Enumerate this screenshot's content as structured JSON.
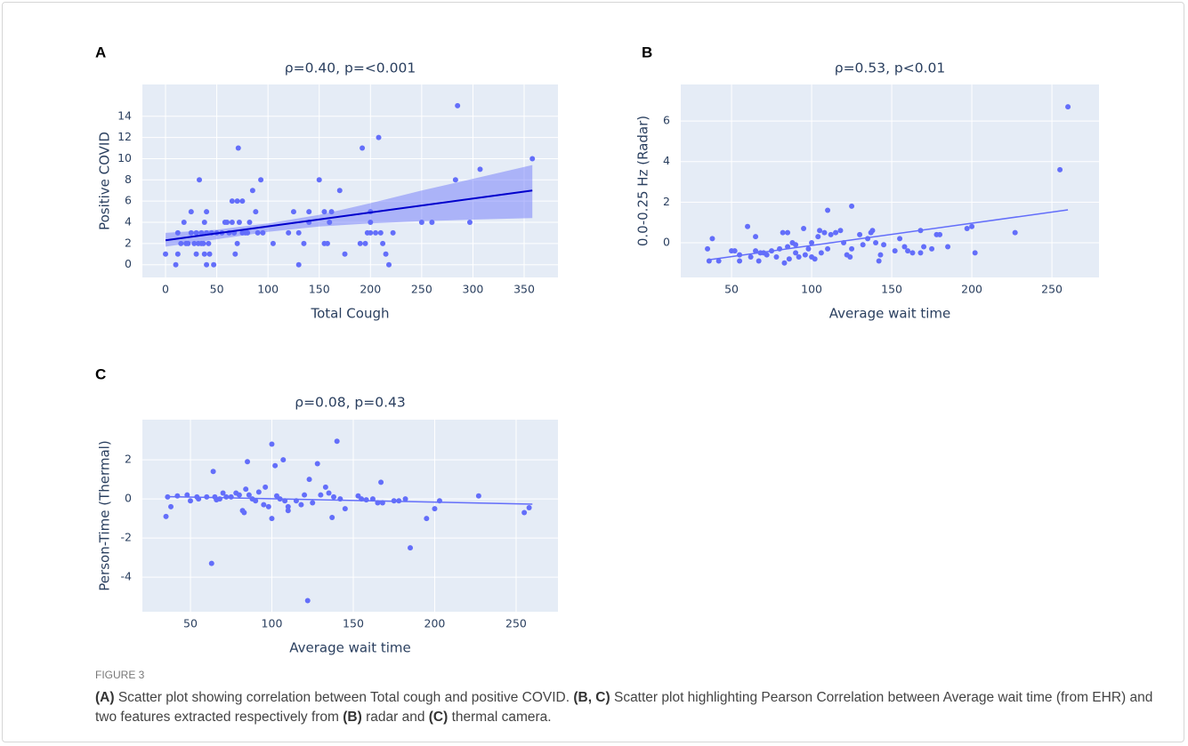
{
  "chart_data": [
    {
      "type": "scatter",
      "panel_label": "A",
      "title": "ρ=0.40, p=<0.001",
      "xlabel": "Total Cough",
      "ylabel": "Positive COVID",
      "color": "#636efa",
      "grid": true,
      "xlim": [
        -22.6,
        383
      ],
      "ylim": [
        -1.2,
        17
      ],
      "xticks": [
        0,
        50,
        100,
        150,
        200,
        250,
        300,
        350
      ],
      "yticks": [
        0,
        2,
        4,
        6,
        8,
        10,
        12,
        14
      ],
      "x": [
        0,
        10,
        12,
        12,
        15,
        18,
        20,
        22,
        25,
        25,
        28,
        30,
        30,
        32,
        33,
        35,
        35,
        37,
        38,
        38,
        40,
        40,
        40,
        42,
        43,
        45,
        47,
        50,
        55,
        58,
        60,
        62,
        65,
        65,
        67,
        68,
        70,
        70,
        71,
        72,
        75,
        75,
        78,
        80,
        82,
        85,
        88,
        90,
        93,
        95,
        105,
        120,
        125,
        130,
        130,
        135,
        140,
        140,
        150,
        155,
        155,
        158,
        160,
        162,
        170,
        175,
        190,
        192,
        195,
        197,
        200,
        200,
        200,
        205,
        208,
        210,
        212,
        215,
        218,
        222,
        250,
        260,
        283,
        285,
        297,
        307,
        358
      ],
      "values": [
        1,
        0,
        1,
        3,
        2,
        4,
        2,
        2,
        3,
        5,
        2,
        3,
        1,
        2,
        8,
        3,
        2,
        2,
        1,
        4,
        0,
        5,
        3,
        2,
        1,
        3,
        0,
        3,
        3,
        4,
        4,
        3,
        6,
        4,
        3,
        1,
        6,
        2,
        11,
        4,
        6,
        3,
        3,
        3,
        4,
        7,
        5,
        3,
        8,
        3,
        2,
        3,
        5,
        0,
        3,
        2,
        5,
        4,
        8,
        5,
        2,
        2,
        4,
        5,
        7,
        1,
        2,
        11,
        2,
        3,
        5,
        4,
        3,
        3,
        12,
        3,
        2,
        1,
        0,
        3,
        4,
        4,
        8,
        15,
        4,
        9,
        10
      ],
      "fit": {
        "color": "#0000cc",
        "x": [
          0,
          358
        ],
        "values": [
          2.3,
          7.0
        ]
      },
      "band": {
        "color": "#636efa",
        "x": [
          0,
          50,
          100,
          150,
          200,
          250,
          300,
          358
        ],
        "lower": [
          1.7,
          2.4,
          3.1,
          3.6,
          3.9,
          4.1,
          4.25,
          4.4
        ],
        "upper": [
          3.0,
          3.3,
          3.9,
          4.7,
          5.8,
          7.0,
          8.1,
          9.4
        ]
      }
    },
    {
      "type": "scatter",
      "panel_label": "B",
      "title": "ρ=0.53, p<0.01",
      "xlabel": "Average wait time",
      "ylabel": "0.0-0.25 Hz (Radar)",
      "color": "#636efa",
      "grid": true,
      "xlim": [
        18.3,
        279.4
      ],
      "ylim": [
        -1.71,
        7.8
      ],
      "xticks": [
        50,
        100,
        150,
        200,
        250
      ],
      "yticks": [
        0,
        2,
        4,
        6
      ],
      "x": [
        35,
        36,
        38,
        42,
        50,
        52,
        55,
        55,
        60,
        62,
        65,
        65,
        67,
        68,
        70,
        72,
        75,
        78,
        80,
        82,
        83,
        85,
        85,
        86,
        88,
        90,
        90,
        92,
        95,
        96,
        98,
        100,
        100,
        102,
        104,
        105,
        106,
        108,
        110,
        110,
        112,
        115,
        118,
        120,
        122,
        124,
        125,
        125,
        130,
        132,
        135,
        137,
        138,
        140,
        142,
        143,
        145,
        152,
        155,
        158,
        160,
        163,
        168,
        168,
        170,
        175,
        178,
        180,
        185,
        197,
        200,
        202,
        227,
        255,
        260
      ],
      "values": [
        -0.3,
        -0.9,
        0.2,
        -0.9,
        -0.4,
        -0.4,
        -0.9,
        -0.6,
        0.8,
        -0.7,
        -0.4,
        0.3,
        -0.9,
        -0.5,
        -0.5,
        -0.6,
        -0.4,
        -0.7,
        -0.3,
        0.5,
        -1.0,
        -0.2,
        0.5,
        -0.8,
        0.0,
        -0.5,
        -0.1,
        -0.7,
        0.7,
        -0.6,
        -0.3,
        -0.7,
        0.0,
        -0.8,
        0.3,
        0.6,
        -0.5,
        0.5,
        1.6,
        -0.3,
        0.4,
        0.5,
        0.6,
        0.0,
        -0.6,
        -0.7,
        1.8,
        -0.3,
        0.4,
        -0.1,
        0.2,
        0.5,
        0.6,
        0.0,
        -0.9,
        -0.6,
        -0.1,
        -0.4,
        0.2,
        -0.2,
        -0.4,
        -0.5,
        0.6,
        -0.5,
        -0.2,
        -0.3,
        0.4,
        0.4,
        -0.2,
        0.7,
        0.8,
        -0.5,
        0.5,
        3.6,
        6.7
      ],
      "fit": {
        "color": "#636efa",
        "x": [
          35,
          260
        ],
        "values": [
          -0.85,
          1.62
        ]
      }
    },
    {
      "type": "scatter",
      "panel_label": "C",
      "title": "ρ=0.08, p=0.43",
      "xlabel": "Average wait time",
      "ylabel": "Person-Time (Thermal)",
      "color": "#636efa",
      "grid": true,
      "xlim": [
        20.5,
        275.7
      ],
      "ylim": [
        -5.77,
        4.05
      ],
      "xticks": [
        50,
        100,
        150,
        200,
        250
      ],
      "yticks": [
        -4,
        -2,
        0,
        2
      ],
      "x": [
        35,
        36,
        38,
        42,
        48,
        50,
        54,
        55,
        60,
        63,
        64,
        65,
        66,
        68,
        70,
        72,
        75,
        78,
        80,
        82,
        83,
        84,
        85,
        86,
        88,
        90,
        92,
        95,
        96,
        98,
        100,
        100,
        102,
        103,
        105,
        107,
        108,
        110,
        110,
        115,
        118,
        120,
        122,
        123,
        125,
        128,
        130,
        133,
        135,
        137,
        138,
        140,
        142,
        145,
        153,
        155,
        158,
        162,
        165,
        167,
        168,
        175,
        178,
        182,
        185,
        195,
        200,
        203,
        227,
        255,
        258
      ],
      "values": [
        -0.9,
        0.1,
        -0.4,
        0.15,
        0.2,
        -0.1,
        0.1,
        0.0,
        0.1,
        -3.3,
        1.4,
        0.1,
        -0.05,
        0.0,
        0.3,
        0.1,
        0.1,
        0.3,
        0.2,
        -0.6,
        -0.7,
        0.5,
        1.9,
        0.2,
        0.0,
        -0.1,
        0.35,
        -0.3,
        0.6,
        -0.4,
        -1.0,
        2.8,
        1.7,
        0.15,
        0.0,
        2.0,
        -0.1,
        -0.4,
        -0.6,
        -0.1,
        -0.3,
        0.2,
        -5.2,
        1.0,
        -0.2,
        1.8,
        0.2,
        0.6,
        0.3,
        -0.95,
        0.1,
        2.95,
        0.0,
        -0.5,
        0.15,
        0.0,
        -0.05,
        0.0,
        -0.2,
        0.85,
        -0.2,
        -0.1,
        -0.1,
        0.0,
        -2.5,
        -1.0,
        -0.5,
        -0.1,
        0.15,
        -0.7,
        -0.45
      ],
      "fit": {
        "color": "#636efa",
        "x": [
          35,
          260
        ],
        "values": [
          0.12,
          -0.27
        ]
      }
    }
  ],
  "caption": {
    "label": "FIGURE 3",
    "parts": [
      {
        "text": "(A)",
        "bold": true
      },
      {
        "text": " Scatter plot showing correlation between Total cough and positive COVID. "
      },
      {
        "text": "(B, C)",
        "bold": true
      },
      {
        "text": " Scatter plot highlighting Pearson Correlation between Average wait time (from EHR) and two features extracted respectively from "
      },
      {
        "text": "(B)",
        "bold": true
      },
      {
        "text": " radar and "
      },
      {
        "text": "(C)",
        "bold": true
      },
      {
        "text": " thermal camera."
      }
    ]
  }
}
